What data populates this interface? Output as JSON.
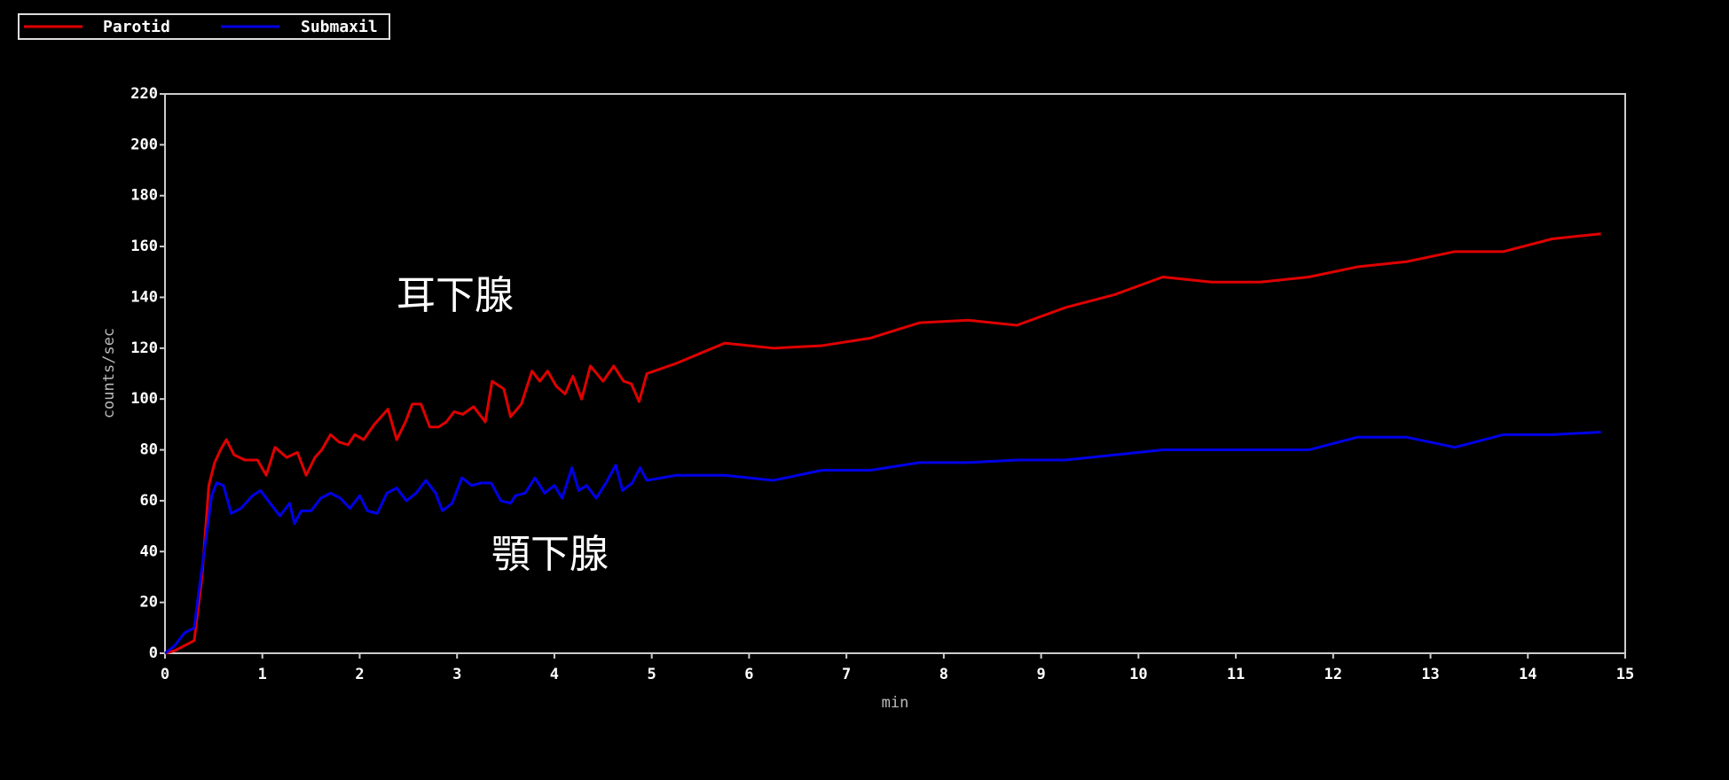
{
  "chart_data": {
    "type": "line",
    "xlabel": "min",
    "ylabel": "counts/sec",
    "xlim": [
      0,
      15
    ],
    "xticks": [
      0,
      1,
      2,
      3,
      4,
      5,
      6,
      7,
      8,
      9,
      10,
      11,
      12,
      13,
      14,
      15
    ],
    "ylim": [
      0,
      220
    ],
    "yticks": [
      0,
      20,
      40,
      60,
      80,
      100,
      120,
      140,
      160,
      180,
      200,
      220
    ],
    "annotations": [
      "耳下腺",
      "顎下腺"
    ],
    "series": [
      {
        "name": "Parotid",
        "color": "#e00000",
        "x": [
          0,
          0.1,
          0.2,
          0.3,
          0.38,
          0.45,
          0.51,
          0.57,
          0.63,
          0.71,
          0.82,
          0.95,
          1.04,
          1.13,
          1.25,
          1.36,
          1.45,
          1.54,
          1.61,
          1.7,
          1.79,
          1.88,
          1.95,
          2.04,
          2.15,
          2.29,
          2.38,
          2.47,
          2.54,
          2.63,
          2.72,
          2.81,
          2.89,
          2.97,
          3.06,
          3.17,
          3.29,
          3.36,
          3.48,
          3.55,
          3.66,
          3.77,
          3.85,
          3.93,
          4.02,
          4.11,
          4.19,
          4.28,
          4.37,
          4.5,
          4.61,
          4.71,
          4.79,
          4.87,
          4.95,
          5.25,
          5.5,
          5.75,
          6.25,
          6.75,
          7.25,
          7.75,
          8.25,
          8.75,
          9.25,
          9.75,
          10.25,
          10.75,
          11.25,
          11.75,
          12.25,
          12.75,
          13.25,
          13.75,
          14.25,
          14.75
        ],
        "values": [
          0,
          1,
          3,
          5,
          30,
          66,
          75,
          80,
          84,
          78,
          76,
          76,
          70,
          81,
          77,
          79,
          70,
          77,
          80,
          86,
          83,
          82,
          86,
          84,
          90,
          96,
          84,
          91,
          98,
          98,
          89,
          89,
          91,
          95,
          94,
          97,
          91,
          107,
          104,
          93,
          98,
          111,
          107,
          111,
          105,
          102,
          109,
          100,
          113,
          107,
          113,
          107,
          106,
          99,
          110,
          114,
          118,
          122,
          120,
          121,
          124,
          130,
          131,
          129,
          136,
          141,
          148,
          146,
          146,
          148,
          152,
          154,
          158,
          158,
          163,
          165
        ]
      },
      {
        "name": "Submaxil",
        "color": "#0000e8",
        "x": [
          0,
          0.1,
          0.2,
          0.3,
          0.35,
          0.42,
          0.48,
          0.53,
          0.6,
          0.68,
          0.78,
          0.9,
          0.98,
          1.08,
          1.18,
          1.28,
          1.33,
          1.4,
          1.5,
          1.6,
          1.7,
          1.8,
          1.9,
          2.0,
          2.08,
          2.18,
          2.28,
          2.38,
          2.48,
          2.58,
          2.68,
          2.78,
          2.85,
          2.95,
          3.05,
          3.15,
          3.25,
          3.35,
          3.45,
          3.55,
          3.6,
          3.7,
          3.8,
          3.9,
          4.0,
          4.08,
          4.18,
          4.25,
          4.33,
          4.43,
          4.53,
          4.63,
          4.7,
          4.8,
          4.88,
          4.95,
          5.25,
          5.75,
          6.25,
          6.75,
          7.25,
          7.75,
          8.25,
          8.75,
          9.25,
          9.75,
          10.25,
          10.75,
          11.25,
          11.75,
          12.25,
          12.75,
          13.25,
          13.75,
          14.25,
          14.75
        ],
        "values": [
          0,
          3,
          8,
          10,
          25,
          45,
          62,
          67,
          66,
          55,
          57,
          62,
          64,
          59,
          54,
          59,
          51,
          56,
          56,
          61,
          63,
          61,
          57,
          62,
          56,
          55,
          63,
          65,
          60,
          63,
          68,
          63,
          56,
          59,
          69,
          66,
          67,
          67,
          60,
          59,
          62,
          63,
          69,
          63,
          66,
          61,
          73,
          64,
          66,
          61,
          67,
          74,
          64,
          67,
          73,
          68,
          70,
          70,
          68,
          72,
          72,
          75,
          75,
          76,
          76,
          78,
          80,
          80,
          80,
          80,
          85,
          85,
          81,
          86,
          86,
          87
        ]
      }
    ]
  }
}
